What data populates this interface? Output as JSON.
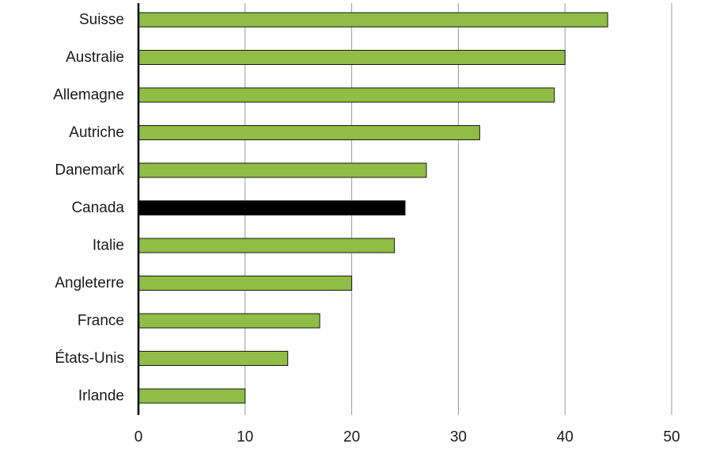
{
  "chart_data": {
    "type": "bar",
    "orientation": "horizontal",
    "categories": [
      "Suisse",
      "Australie",
      "Allemagne",
      "Autriche",
      "Danemark",
      "Canada",
      "Italie",
      "Angleterre",
      "France",
      "États-Unis",
      "Irlande"
    ],
    "values": [
      44,
      40,
      39,
      32,
      27,
      25,
      24,
      20,
      17,
      14,
      10
    ],
    "highlight": "Canada",
    "xlim": [
      0,
      50
    ],
    "xticks": [
      0,
      10,
      20,
      30,
      40,
      50
    ],
    "grid": "vertical",
    "legend": "none",
    "title": "",
    "xlabel": "",
    "ylabel": ""
  },
  "colors": {
    "bar": "#8fbd45",
    "highlight": "#000000",
    "grid": "#9a9a9a",
    "axis": "#000000"
  }
}
